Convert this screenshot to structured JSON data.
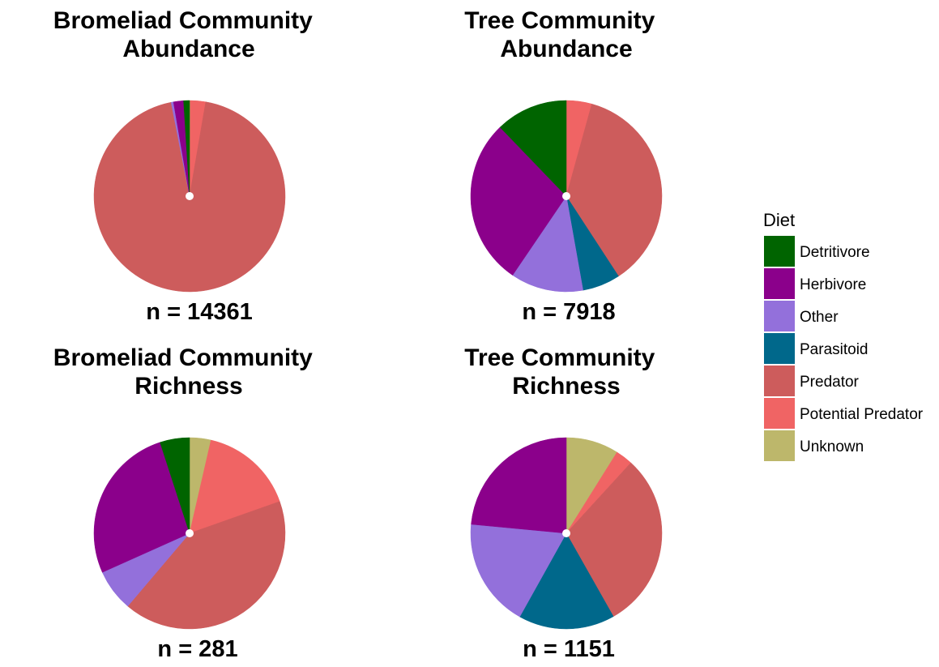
{
  "legend": {
    "title": "Diet",
    "items": [
      {
        "label": "Detritivore",
        "color": "#006400"
      },
      {
        "label": "Herbivore",
        "color": "#8B008B"
      },
      {
        "label": "Other",
        "color": "#9370DB"
      },
      {
        "label": "Parasitoid",
        "color": "#00688B"
      },
      {
        "label": "Predator",
        "color": "#CD5C5C"
      },
      {
        "label": "Potential Predator",
        "color": "#F06464"
      },
      {
        "label": "Unknown",
        "color": "#BDB76B"
      }
    ]
  },
  "chart_data": [
    {
      "type": "pie",
      "title": "Bromeliad Community\nAbundance",
      "n_label": "n = 14361",
      "slices": [
        {
          "category": "Unknown",
          "value": 0.1
        },
        {
          "category": "Potential Predator",
          "value": 2.6
        },
        {
          "category": "Predator",
          "value": 94.2
        },
        {
          "category": "Parasitoid",
          "value": 0.0
        },
        {
          "category": "Other",
          "value": 0.4
        },
        {
          "category": "Herbivore",
          "value": 1.7
        },
        {
          "category": "Detritivore",
          "value": 1.0
        }
      ]
    },
    {
      "type": "pie",
      "title": "Tree Community\nAbundance",
      "n_label": "n = 7918",
      "slices": [
        {
          "category": "Unknown",
          "value": 0.0
        },
        {
          "category": "Potential Predator",
          "value": 4.3
        },
        {
          "category": "Predator",
          "value": 36.5
        },
        {
          "category": "Parasitoid",
          "value": 6.4
        },
        {
          "category": "Other",
          "value": 12.3
        },
        {
          "category": "Herbivore",
          "value": 28.3
        },
        {
          "category": "Detritivore",
          "value": 12.2
        }
      ]
    },
    {
      "type": "pie",
      "title": "Bromeliad Community\nRichness",
      "n_label": "n = 281",
      "slices": [
        {
          "category": "Unknown",
          "value": 3.6
        },
        {
          "category": "Potential Predator",
          "value": 16.0
        },
        {
          "category": "Predator",
          "value": 41.6
        },
        {
          "category": "Parasitoid",
          "value": 0.0
        },
        {
          "category": "Other",
          "value": 7.1
        },
        {
          "category": "Herbivore",
          "value": 26.7
        },
        {
          "category": "Detritivore",
          "value": 5.0
        }
      ]
    },
    {
      "type": "pie",
      "title": "Tree Community\nRichness",
      "n_label": "n = 1151",
      "slices": [
        {
          "category": "Unknown",
          "value": 8.9
        },
        {
          "category": "Potential Predator",
          "value": 2.9
        },
        {
          "category": "Predator",
          "value": 30.0
        },
        {
          "category": "Parasitoid",
          "value": 16.3
        },
        {
          "category": "Other",
          "value": 18.4
        },
        {
          "category": "Herbivore",
          "value": 23.5
        },
        {
          "category": "Detritivore",
          "value": 0.0
        }
      ]
    }
  ]
}
